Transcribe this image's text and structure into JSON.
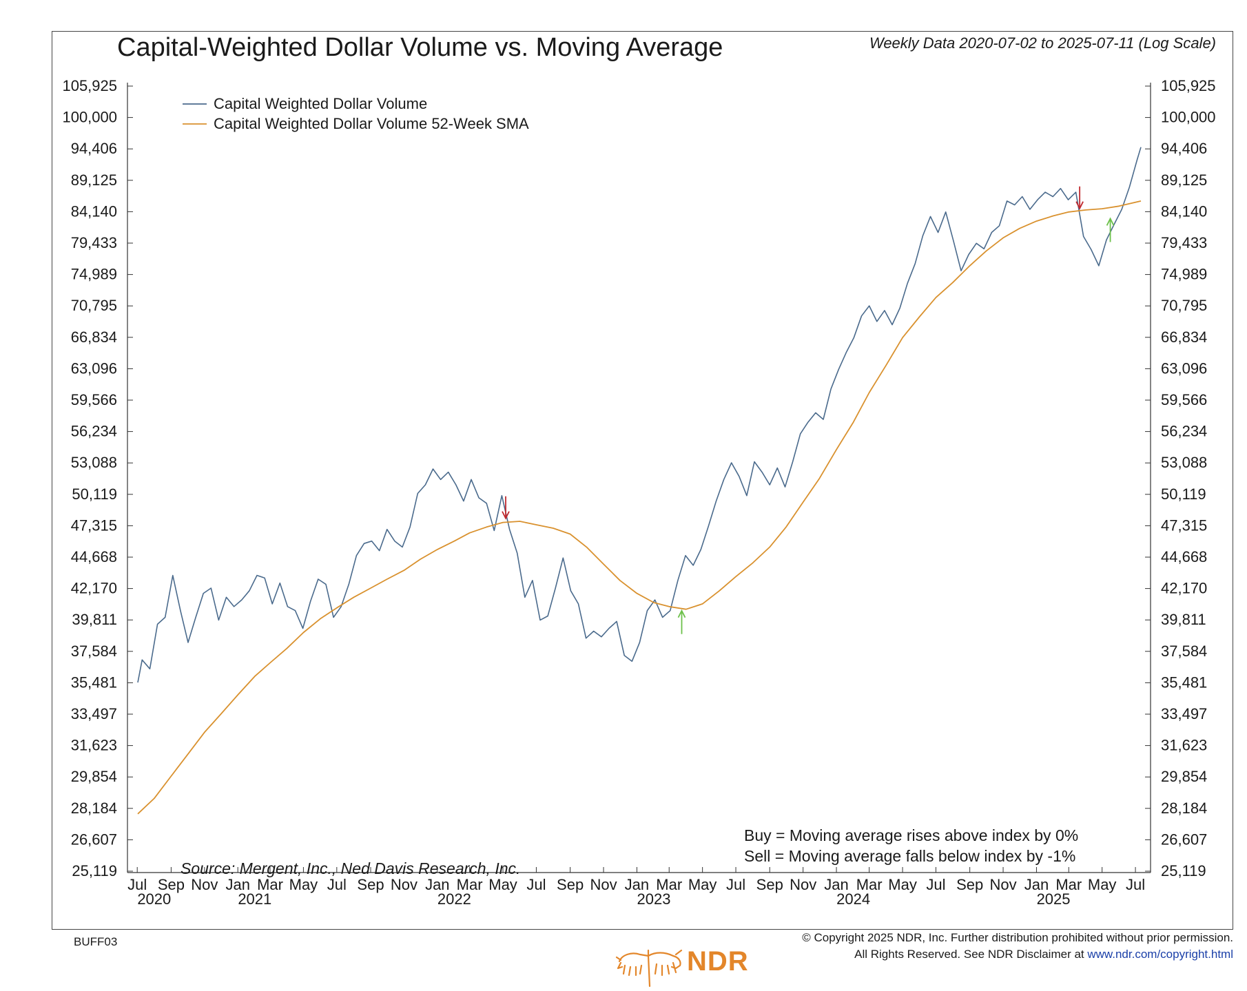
{
  "header": {
    "title": "Capital-Weighted Dollar Volume vs. Moving Average",
    "subtitle": "Weekly Data 2020-07-02 to 2025-07-11 (Log Scale)"
  },
  "notes": {
    "source": "Source:   Mergent, Inc., Ned Davis Research, Inc.",
    "buy_rule": "Buy = Moving average rises above index by 0%",
    "sell_rule": "Sell = Moving average falls below index by -1%"
  },
  "footer": {
    "chart_id": "BUFF03",
    "copyright_line1": "© Copyright 2025 NDR, Inc. Further distribution prohibited without prior permission.",
    "copyright_line2": "All Rights Reserved. See NDR Disclaimer at ",
    "copyright_link": "www.ndr.com/copyright.html",
    "logo_text": "NDR"
  },
  "colors": {
    "index_line": "#4a6a8c",
    "sma_line": "#d9912e",
    "sell_arrow": "#c0282d",
    "buy_arrow": "#6cc04a",
    "brand": "#e3862a"
  },
  "chart_data": {
    "type": "line",
    "log_scale": true,
    "grid": false,
    "legend_position": "top-left",
    "x_range": [
      "2020-07-02",
      "2025-07-11"
    ],
    "ylim": [
      25119,
      105925
    ],
    "y_ticks": [
      25119,
      26607,
      28184,
      29854,
      31623,
      33497,
      35481,
      37584,
      39811,
      42170,
      44668,
      47315,
      50119,
      53088,
      56234,
      59566,
      63096,
      66834,
      70795,
      74989,
      79433,
      84140,
      89125,
      94406,
      100000,
      105925
    ],
    "y_tick_labels": [
      "25,119",
      "26,607",
      "28,184",
      "29,854",
      "31,623",
      "33,497",
      "35,481",
      "37,584",
      "39,811",
      "42,170",
      "44,668",
      "47,315",
      "50,119",
      "53,088",
      "56,234",
      "59,566",
      "63,096",
      "66,834",
      "70,795",
      "74,989",
      "79,433",
      "84,140",
      "89,125",
      "94,406",
      "100,000",
      "105,925"
    ],
    "x_ticks": [
      {
        "date": "2020-07-01",
        "label": "Jul"
      },
      {
        "date": "2020-09-01",
        "label": "Sep"
      },
      {
        "date": "2020-11-01",
        "label": "Nov"
      },
      {
        "date": "2021-01-01",
        "label": "Jan"
      },
      {
        "date": "2021-03-01",
        "label": "Mar"
      },
      {
        "date": "2021-05-01",
        "label": "May"
      },
      {
        "date": "2021-07-01",
        "label": "Jul"
      },
      {
        "date": "2021-09-01",
        "label": "Sep"
      },
      {
        "date": "2021-11-01",
        "label": "Nov"
      },
      {
        "date": "2022-01-01",
        "label": "Jan"
      },
      {
        "date": "2022-03-01",
        "label": "Mar"
      },
      {
        "date": "2022-05-01",
        "label": "May"
      },
      {
        "date": "2022-07-01",
        "label": "Jul"
      },
      {
        "date": "2022-09-01",
        "label": "Sep"
      },
      {
        "date": "2022-11-01",
        "label": "Nov"
      },
      {
        "date": "2023-01-01",
        "label": "Jan"
      },
      {
        "date": "2023-03-01",
        "label": "Mar"
      },
      {
        "date": "2023-05-01",
        "label": "May"
      },
      {
        "date": "2023-07-01",
        "label": "Jul"
      },
      {
        "date": "2023-09-01",
        "label": "Sep"
      },
      {
        "date": "2023-11-01",
        "label": "Nov"
      },
      {
        "date": "2024-01-01",
        "label": "Jan"
      },
      {
        "date": "2024-03-01",
        "label": "Mar"
      },
      {
        "date": "2024-05-01",
        "label": "May"
      },
      {
        "date": "2024-07-01",
        "label": "Jul"
      },
      {
        "date": "2024-09-01",
        "label": "Sep"
      },
      {
        "date": "2024-11-01",
        "label": "Nov"
      },
      {
        "date": "2025-01-01",
        "label": "Jan"
      },
      {
        "date": "2025-03-01",
        "label": "Mar"
      },
      {
        "date": "2025-05-01",
        "label": "May"
      },
      {
        "date": "2025-07-01",
        "label": "Jul"
      }
    ],
    "year_labels": [
      {
        "date": "2020-08-01",
        "label": "2020"
      },
      {
        "date": "2021-02-01",
        "label": "2021"
      },
      {
        "date": "2022-02-01",
        "label": "2022"
      },
      {
        "date": "2023-02-01",
        "label": "2023"
      },
      {
        "date": "2024-02-01",
        "label": "2024"
      },
      {
        "date": "2025-02-01",
        "label": "2025"
      }
    ],
    "series": [
      {
        "name": "Capital Weighted Dollar Volume",
        "color": "#4a6a8c",
        "points": [
          [
            "2020-07-02",
            35500
          ],
          [
            "2020-07-10",
            37000
          ],
          [
            "2020-07-24",
            36400
          ],
          [
            "2020-08-07",
            39500
          ],
          [
            "2020-08-21",
            40000
          ],
          [
            "2020-09-04",
            43200
          ],
          [
            "2020-09-18",
            40500
          ],
          [
            "2020-10-02",
            38200
          ],
          [
            "2020-10-16",
            40000
          ],
          [
            "2020-10-30",
            41800
          ],
          [
            "2020-11-13",
            42200
          ],
          [
            "2020-11-27",
            39800
          ],
          [
            "2020-12-11",
            41500
          ],
          [
            "2020-12-25",
            40800
          ],
          [
            "2021-01-08",
            41300
          ],
          [
            "2021-01-22",
            42000
          ],
          [
            "2021-02-05",
            43200
          ],
          [
            "2021-02-19",
            43000
          ],
          [
            "2021-03-05",
            41000
          ],
          [
            "2021-03-19",
            42600
          ],
          [
            "2021-04-02",
            40800
          ],
          [
            "2021-04-16",
            40500
          ],
          [
            "2021-04-30",
            39200
          ],
          [
            "2021-05-14",
            41200
          ],
          [
            "2021-05-28",
            42900
          ],
          [
            "2021-06-11",
            42500
          ],
          [
            "2021-06-25",
            40000
          ],
          [
            "2021-07-09",
            40800
          ],
          [
            "2021-07-23",
            42500
          ],
          [
            "2021-08-06",
            44800
          ],
          [
            "2021-08-20",
            45800
          ],
          [
            "2021-09-03",
            46000
          ],
          [
            "2021-09-17",
            45200
          ],
          [
            "2021-10-01",
            47000
          ],
          [
            "2021-10-15",
            46000
          ],
          [
            "2021-10-29",
            45500
          ],
          [
            "2021-11-12",
            47200
          ],
          [
            "2021-11-26",
            50200
          ],
          [
            "2021-12-10",
            51000
          ],
          [
            "2021-12-24",
            52500
          ],
          [
            "2022-01-07",
            51500
          ],
          [
            "2022-01-21",
            52200
          ],
          [
            "2022-02-04",
            51000
          ],
          [
            "2022-02-18",
            49500
          ],
          [
            "2022-03-04",
            51500
          ],
          [
            "2022-03-18",
            49800
          ],
          [
            "2022-04-01",
            49300
          ],
          [
            "2022-04-15",
            46900
          ],
          [
            "2022-04-29",
            50000
          ],
          [
            "2022-05-13",
            47000
          ],
          [
            "2022-05-27",
            45000
          ],
          [
            "2022-06-10",
            41500
          ],
          [
            "2022-06-24",
            42800
          ],
          [
            "2022-07-08",
            39800
          ],
          [
            "2022-07-22",
            40100
          ],
          [
            "2022-08-05",
            42200
          ],
          [
            "2022-08-19",
            44600
          ],
          [
            "2022-09-02",
            42000
          ],
          [
            "2022-09-16",
            41000
          ],
          [
            "2022-09-30",
            38500
          ],
          [
            "2022-10-14",
            39000
          ],
          [
            "2022-10-28",
            38600
          ],
          [
            "2022-11-11",
            39200
          ],
          [
            "2022-11-25",
            39700
          ],
          [
            "2022-12-09",
            37300
          ],
          [
            "2022-12-23",
            36900
          ],
          [
            "2023-01-06",
            38200
          ],
          [
            "2023-01-20",
            40500
          ],
          [
            "2023-02-03",
            41300
          ],
          [
            "2023-02-17",
            40000
          ],
          [
            "2023-03-03",
            40500
          ],
          [
            "2023-03-17",
            42800
          ],
          [
            "2023-03-31",
            44800
          ],
          [
            "2023-04-14",
            44000
          ],
          [
            "2023-04-28",
            45300
          ],
          [
            "2023-05-12",
            47300
          ],
          [
            "2023-05-26",
            49500
          ],
          [
            "2023-06-09",
            51500
          ],
          [
            "2023-06-23",
            53100
          ],
          [
            "2023-07-07",
            51800
          ],
          [
            "2023-07-21",
            50000
          ],
          [
            "2023-08-04",
            53200
          ],
          [
            "2023-08-18",
            52200
          ],
          [
            "2023-09-01",
            51000
          ],
          [
            "2023-09-15",
            52600
          ],
          [
            "2023-09-29",
            50800
          ],
          [
            "2023-10-13",
            53200
          ],
          [
            "2023-10-27",
            56000
          ],
          [
            "2023-11-10",
            57200
          ],
          [
            "2023-11-24",
            58200
          ],
          [
            "2023-12-08",
            57500
          ],
          [
            "2023-12-22",
            60800
          ],
          [
            "2024-01-05",
            63000
          ],
          [
            "2024-01-19",
            65000
          ],
          [
            "2024-02-02",
            66800
          ],
          [
            "2024-02-16",
            69500
          ],
          [
            "2024-03-01",
            70800
          ],
          [
            "2024-03-15",
            68800
          ],
          [
            "2024-03-29",
            70200
          ],
          [
            "2024-04-12",
            68400
          ],
          [
            "2024-04-26",
            70500
          ],
          [
            "2024-05-10",
            73800
          ],
          [
            "2024-05-24",
            76500
          ],
          [
            "2024-06-07",
            80500
          ],
          [
            "2024-06-21",
            83400
          ],
          [
            "2024-07-05",
            81000
          ],
          [
            "2024-07-19",
            84100
          ],
          [
            "2024-08-02",
            79800
          ],
          [
            "2024-08-16",
            75500
          ],
          [
            "2024-08-30",
            77800
          ],
          [
            "2024-09-13",
            79400
          ],
          [
            "2024-09-27",
            78600
          ],
          [
            "2024-10-11",
            81000
          ],
          [
            "2024-10-25",
            82000
          ],
          [
            "2024-11-08",
            85800
          ],
          [
            "2024-11-22",
            85200
          ],
          [
            "2024-12-06",
            86500
          ],
          [
            "2024-12-20",
            84500
          ],
          [
            "2025-01-03",
            86000
          ],
          [
            "2025-01-17",
            87200
          ],
          [
            "2025-01-31",
            86500
          ],
          [
            "2025-02-14",
            87800
          ],
          [
            "2025-02-28",
            86000
          ],
          [
            "2025-03-14",
            87200
          ],
          [
            "2025-03-28",
            80400
          ],
          [
            "2025-04-11",
            78500
          ],
          [
            "2025-04-25",
            76200
          ],
          [
            "2025-05-09",
            79900
          ],
          [
            "2025-05-23",
            82200
          ],
          [
            "2025-06-06",
            84500
          ],
          [
            "2025-06-20",
            88000
          ],
          [
            "2025-07-04",
            92500
          ],
          [
            "2025-07-11",
            94700
          ]
        ]
      },
      {
        "name": "Capital Weighted Dollar Volume 52-Week SMA",
        "color": "#d9912e",
        "points": [
          [
            "2020-07-02",
            27900
          ],
          [
            "2020-08-01",
            28700
          ],
          [
            "2020-09-01",
            29900
          ],
          [
            "2020-10-01",
            31100
          ],
          [
            "2020-11-01",
            32400
          ],
          [
            "2020-12-01",
            33500
          ],
          [
            "2021-01-01",
            34700
          ],
          [
            "2021-02-01",
            35900
          ],
          [
            "2021-03-01",
            36800
          ],
          [
            "2021-04-01",
            37800
          ],
          [
            "2021-05-01",
            38900
          ],
          [
            "2021-06-01",
            39900
          ],
          [
            "2021-07-01",
            40700
          ],
          [
            "2021-08-01",
            41500
          ],
          [
            "2021-09-01",
            42200
          ],
          [
            "2021-10-01",
            42900
          ],
          [
            "2021-11-01",
            43600
          ],
          [
            "2021-12-01",
            44500
          ],
          [
            "2022-01-01",
            45300
          ],
          [
            "2022-02-01",
            46000
          ],
          [
            "2022-03-01",
            46700
          ],
          [
            "2022-04-01",
            47200
          ],
          [
            "2022-05-01",
            47600
          ],
          [
            "2022-06-01",
            47700
          ],
          [
            "2022-07-01",
            47400
          ],
          [
            "2022-08-01",
            47100
          ],
          [
            "2022-09-01",
            46600
          ],
          [
            "2022-10-01",
            45500
          ],
          [
            "2022-11-01",
            44100
          ],
          [
            "2022-12-01",
            42800
          ],
          [
            "2023-01-01",
            41800
          ],
          [
            "2023-02-01",
            41100
          ],
          [
            "2023-03-01",
            40800
          ],
          [
            "2023-04-01",
            40600
          ],
          [
            "2023-05-01",
            41000
          ],
          [
            "2023-06-01",
            42000
          ],
          [
            "2023-07-01",
            43100
          ],
          [
            "2023-08-01",
            44200
          ],
          [
            "2023-09-01",
            45500
          ],
          [
            "2023-10-01",
            47200
          ],
          [
            "2023-11-01",
            49400
          ],
          [
            "2023-12-01",
            51600
          ],
          [
            "2024-01-01",
            54400
          ],
          [
            "2024-02-01",
            57200
          ],
          [
            "2024-03-01",
            60400
          ],
          [
            "2024-04-01",
            63500
          ],
          [
            "2024-05-01",
            66800
          ],
          [
            "2024-06-01",
            69400
          ],
          [
            "2024-07-01",
            71900
          ],
          [
            "2024-08-01",
            73900
          ],
          [
            "2024-09-01",
            76200
          ],
          [
            "2024-10-01",
            78300
          ],
          [
            "2024-11-01",
            80200
          ],
          [
            "2024-12-01",
            81600
          ],
          [
            "2025-01-01",
            82700
          ],
          [
            "2025-02-01",
            83500
          ],
          [
            "2025-03-01",
            84100
          ],
          [
            "2025-04-01",
            84400
          ],
          [
            "2025-05-01",
            84600
          ],
          [
            "2025-06-01",
            85000
          ],
          [
            "2025-07-11",
            85800
          ]
        ]
      }
    ],
    "signals": [
      {
        "type": "sell",
        "date": "2022-05-06",
        "value": 47600
      },
      {
        "type": "buy",
        "date": "2023-03-24",
        "value": 40700
      },
      {
        "type": "sell",
        "date": "2025-03-21",
        "value": 84000
      },
      {
        "type": "buy",
        "date": "2025-05-16",
        "value": 83500
      }
    ]
  }
}
